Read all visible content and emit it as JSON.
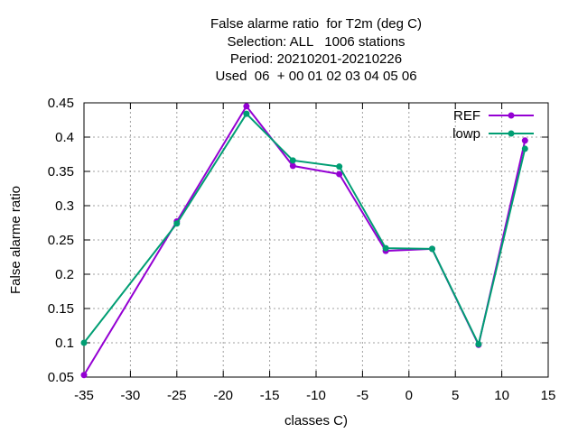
{
  "chart_data": {
    "type": "line",
    "title_lines": [
      "False alarme ratio  for T2m (deg C)",
      "Selection: ALL   1006 stations",
      "Period: 20210201-20210226",
      "Used  06  + 00 01 02 03 04 05 06"
    ],
    "xlabel": "classes C)",
    "ylabel": "False alarme ratio",
    "xlim": [
      -35,
      15
    ],
    "ylim": [
      0.05,
      0.45
    ],
    "xticks": [
      -35,
      -30,
      -25,
      -20,
      -15,
      -10,
      -5,
      0,
      5,
      10,
      15
    ],
    "xtick_labels": [
      "-35",
      "-30",
      "-25",
      "-20",
      "-15",
      "-10",
      "-5",
      "0",
      "5",
      "10",
      "15"
    ],
    "yticks": [
      0.05,
      0.1,
      0.15,
      0.2,
      0.25,
      0.3,
      0.35,
      0.4,
      0.45
    ],
    "ytick_labels": [
      "0.05",
      "0.1",
      "0.15",
      "0.2",
      "0.25",
      "0.3",
      "0.35",
      "0.4",
      "0.45"
    ],
    "grid": true,
    "legend_position": "top-right",
    "series": [
      {
        "name": "REF",
        "color": "#9400d3",
        "x": [
          -35,
          -25,
          -17.5,
          -12.5,
          -7.5,
          -2.5,
          2.5,
          7.5,
          12.5
        ],
        "y": [
          0.053,
          0.277,
          0.445,
          0.358,
          0.346,
          0.234,
          0.237,
          0.097,
          0.395
        ]
      },
      {
        "name": "lowp",
        "color": "#009e73",
        "x": [
          -35,
          -25,
          -17.5,
          -12.5,
          -7.5,
          -2.5,
          2.5,
          7.5,
          12.5
        ],
        "y": [
          0.1,
          0.274,
          0.434,
          0.366,
          0.357,
          0.238,
          0.237,
          0.098,
          0.383
        ]
      }
    ]
  }
}
